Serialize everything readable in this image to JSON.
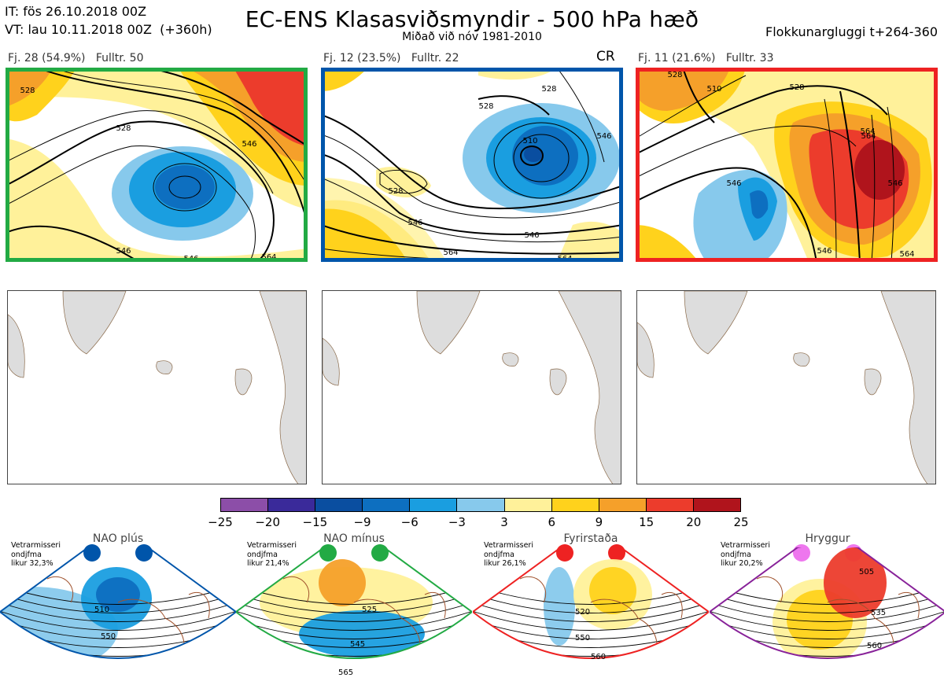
{
  "header": {
    "it_line": "IT: fös 26.10.2018 00Z",
    "vt_line": "VT: lau 10.11.2018 00Z  (+360h)",
    "title": "EC-ENS Klasasviðsmyndir - 500 hPa hæð",
    "subtitle": "Miðað við nóv 1981-2010",
    "window": "Flokkunargluggi t+264-360"
  },
  "panels": [
    {
      "label": "Fj. 28 (54.9%)   Fulltr. 50",
      "tag": "",
      "frame_color": "#22aa44",
      "contour_labels": [
        "528",
        "528",
        "546",
        "546",
        "546",
        "564"
      ]
    },
    {
      "label": "Fj. 12 (23.5%)   Fulltr. 22",
      "tag": "CR",
      "frame_color": "#0055aa",
      "contour_labels": [
        "528",
        "510",
        "528",
        "546",
        "546",
        "528",
        "546",
        "564",
        "564"
      ]
    },
    {
      "label": "Fj. 11 (21.6%)   Fulltr. 33",
      "tag": "",
      "frame_color": "#ee2222",
      "contour_labels": [
        "528",
        "510",
        "528",
        "546",
        "564",
        "546",
        "564",
        "546",
        "564"
      ]
    }
  ],
  "colorbar": {
    "ticks": [
      "−25",
      "−20",
      "−15",
      "−9",
      "−6",
      "−3",
      "3",
      "6",
      "9",
      "15",
      "20",
      "25"
    ],
    "colors": [
      "#8c4ea8",
      "#3a2a9a",
      "#0a4ea0",
      "#0d6fc0",
      "#1a9ee0",
      "#87c9ec",
      "#ffffff",
      "#fff19a",
      "#ffd21c",
      "#f5a02a",
      "#ec3c2c",
      "#b0141c"
    ]
  },
  "regimes": [
    {
      "name": "NAO plús",
      "note": "Vetrarmisseri\nondjfma\nlikur 32,3%",
      "color": "#0055aa",
      "dot_color": "#0055aa",
      "labels": [
        "510",
        "550"
      ]
    },
    {
      "name": "NAO mínus",
      "note": "Vetrarmisseri\nondjfma\nlikur 21,4%",
      "color": "#22aa44",
      "dot_color": "#22aa44",
      "labels": [
        "525",
        "545",
        "565"
      ]
    },
    {
      "name": "Fyrirstaða",
      "note": "Vetrarmisseri\nondjfma\nlikur 26,1%",
      "color": "#ee2222",
      "dot_color": "#ee2222",
      "labels": [
        "520",
        "550",
        "560"
      ]
    },
    {
      "name": "Hryggur",
      "note": "Vetrarmisseri\nondjfma\nlikur 20,2%",
      "color": "#882299",
      "dot_color": "#ee77ee",
      "labels": [
        "505",
        "535",
        "560"
      ]
    }
  ]
}
